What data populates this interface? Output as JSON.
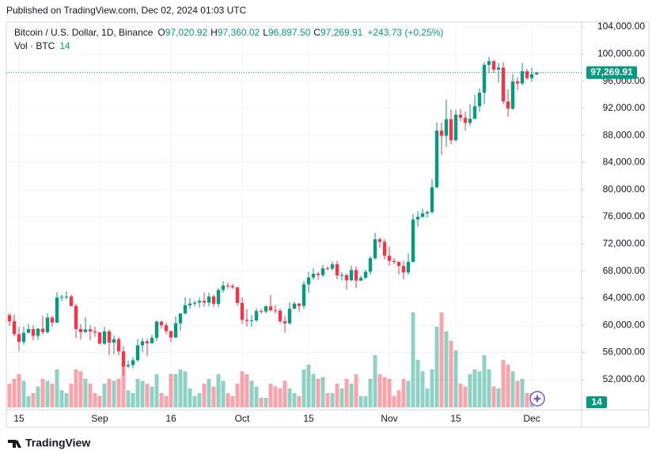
{
  "chart_data": {
    "type": "candlestick",
    "published": "Published on TradingView.com, Dec 02, 2024 01:03 UTC",
    "header": {
      "symbol": "Bitcoin / U.S. Dollar, 1D, Binance",
      "open_prefix": "O",
      "open": "97,020.92",
      "high_prefix": "H",
      "high": "97,360.02",
      "low_prefix": "L",
      "low": "96,897.50",
      "close_prefix": "C",
      "close": "97,269.91",
      "change": "+243.73 (+0.25%)"
    },
    "logo": "TradingView",
    "categories": [
      null,
      null,
      "15",
      null,
      null,
      null,
      null,
      null,
      null,
      null,
      null,
      null,
      null,
      null,
      null,
      null,
      null,
      null,
      null,
      "Sep",
      null,
      null,
      null,
      null,
      null,
      null,
      null,
      null,
      null,
      null,
      null,
      null,
      null,
      null,
      "16",
      null,
      null,
      null,
      null,
      null,
      null,
      null,
      null,
      null,
      null,
      null,
      null,
      null,
      null,
      "Oct",
      null,
      null,
      null,
      null,
      null,
      null,
      null,
      null,
      null,
      null,
      null,
      null,
      null,
      "15",
      null,
      null,
      null,
      null,
      null,
      null,
      null,
      null,
      null,
      null,
      null,
      null,
      null,
      null,
      null,
      null,
      "Nov",
      null,
      null,
      null,
      null,
      null,
      null,
      null,
      null,
      null,
      null,
      null,
      null,
      null,
      "15",
      null,
      null,
      null,
      null,
      null,
      null,
      null,
      null,
      null,
      null,
      null,
      null,
      null,
      null,
      null,
      "Dec",
      null
    ],
    "open": [
      61500,
      60600,
      58700,
      57550,
      58900,
      59450,
      58450,
      59500,
      59000,
      61150,
      60400,
      64100,
      64200,
      64250,
      62850,
      59450,
      59000,
      59400,
      59100,
      58950,
      57300,
      59100,
      57450,
      57950,
      56150,
      53950,
      54150,
      54850,
      57050,
      57650,
      57350,
      58150,
      60550,
      60000,
      59150,
      58200,
      60300,
      61750,
      62950,
      63200,
      63350,
      63600,
      63350,
      64250,
      63150,
      65200,
      65850,
      65800,
      65600,
      63300,
      60800,
      60650,
      60750,
      62100,
      62050,
      62800,
      62200,
      62150,
      60600,
      60300,
      62450,
      63200,
      62850,
      66050,
      67050,
      67600,
      67400,
      68400,
      68350,
      69000,
      67350,
      67400,
      66650,
      68150,
      66600,
      67000,
      67900,
      69900,
      72700,
      72300,
      70250,
      69500,
      69350,
      68750,
      67800,
      69350,
      75600,
      76000,
      76500,
      76700,
      80350,
      88700,
      87950,
      90400,
      87300,
      91050,
      90600,
      89850,
      90450,
      92300,
      94300,
      98400,
      98950,
      97700,
      98000,
      93000,
      91950,
      95950,
      95650,
      97450,
      96450,
      97020.92
    ],
    "high": [
      61800,
      61600,
      59800,
      59800,
      60200,
      60000,
      59600,
      61400,
      61800,
      61400,
      64900,
      64500,
      65000,
      64500,
      63200,
      60200,
      61200,
      60000,
      59800,
      59000,
      59800,
      59400,
      58500,
      58300,
      56900,
      54800,
      55300,
      58000,
      58100,
      58000,
      58600,
      60700,
      60650,
      60400,
      59200,
      61300,
      61800,
      64100,
      64000,
      63600,
      64100,
      64800,
      64800,
      64500,
      65500,
      66500,
      66300,
      66100,
      65600,
      64100,
      62400,
      61500,
      62500,
      62400,
      62950,
      64500,
      63000,
      62500,
      61300,
      63400,
      63500,
      63300,
      66500,
      67900,
      68400,
      67900,
      68900,
      68700,
      69400,
      69500,
      67800,
      67600,
      68800,
      68700,
      67300,
      68200,
      70200,
      73600,
      72900,
      72700,
      71600,
      69900,
      69400,
      69500,
      70600,
      76400,
      76800,
      77200,
      76900,
      81500,
      89900,
      89900,
      93300,
      91800,
      91800,
      91900,
      91500,
      92600,
      94000,
      94900,
      98800,
      99600,
      99100,
      98700,
      98800,
      94800,
      97000,
      96600,
      98700,
      97800,
      98000,
      97360.02
    ],
    "low": [
      59900,
      58400,
      56200,
      57100,
      58800,
      57800,
      57900,
      58600,
      58800,
      59800,
      60300,
      63600,
      63800,
      62800,
      58100,
      57900,
      58900,
      57800,
      58300,
      57200,
      57100,
      55600,
      55700,
      55600,
      52600,
      53700,
      53650,
      54600,
      56000,
      55500,
      57300,
      57700,
      59500,
      58700,
      57500,
      58100,
      59200,
      61600,
      62400,
      62800,
      62600,
      62700,
      62800,
      62700,
      62700,
      64800,
      65400,
      65400,
      62900,
      60200,
      59800,
      59800,
      60500,
      61700,
      61800,
      62100,
      61800,
      60300,
      58900,
      60100,
      62400,
      62000,
      62400,
      64800,
      66700,
      66700,
      67100,
      68100,
      68100,
      66800,
      66600,
      65300,
      66500,
      65500,
      66500,
      66800,
      67500,
      69700,
      71400,
      69700,
      68800,
      69000,
      67500,
      66800,
      67500,
      69300,
      74500,
      75800,
      75900,
      76400,
      80200,
      85100,
      86300,
      86700,
      87100,
      90100,
      88700,
      89400,
      90400,
      91500,
      92600,
      97200,
      97200,
      95800,
      92600,
      90800,
      91800,
      94700,
      95400,
      96200,
      95900,
      96897.5
    ],
    "close": [
      60600,
      58700,
      57550,
      58900,
      59450,
      58450,
      59500,
      59000,
      61150,
      60400,
      64100,
      64200,
      64250,
      62850,
      59450,
      59000,
      59400,
      59100,
      58950,
      57300,
      59100,
      57450,
      57950,
      56150,
      53950,
      54150,
      54850,
      57050,
      57650,
      57350,
      58150,
      60550,
      60000,
      59150,
      58200,
      60300,
      61750,
      62950,
      63200,
      63350,
      63600,
      63350,
      64250,
      63150,
      65200,
      65850,
      65800,
      65600,
      63300,
      60800,
      60650,
      60750,
      62100,
      62050,
      62800,
      62200,
      62150,
      60600,
      60300,
      62450,
      63200,
      62850,
      66050,
      67050,
      67600,
      67400,
      68400,
      68350,
      69000,
      67350,
      67400,
      66650,
      68150,
      66600,
      67000,
      67900,
      69900,
      72700,
      72300,
      70250,
      69500,
      69350,
      68750,
      67800,
      69350,
      75600,
      76000,
      76500,
      76700,
      80350,
      88700,
      87950,
      90400,
      87300,
      91050,
      90600,
      89850,
      90450,
      92300,
      94300,
      98400,
      98950,
      97700,
      98000,
      93000,
      91950,
      95950,
      95650,
      97450,
      96450,
      97026.18,
      97269.91
    ],
    "volume": {
      "name": "Vol · BTC",
      "values": [
        25000,
        30000,
        35000,
        28000,
        12000,
        15000,
        22000,
        30000,
        28000,
        25000,
        40000,
        18000,
        15000,
        25000,
        40000,
        38000,
        30000,
        25000,
        15000,
        12000,
        25000,
        30000,
        28000,
        30000,
        45000,
        18000,
        15000,
        30000,
        28000,
        25000,
        22000,
        35000,
        15000,
        12000,
        35000,
        35000,
        40000,
        38000,
        20000,
        12000,
        15000,
        25000,
        30000,
        22000,
        35000,
        28000,
        15000,
        12000,
        25000,
        38000,
        35000,
        28000,
        22000,
        10000,
        10000,
        25000,
        22000,
        20000,
        28000,
        20000,
        15000,
        12000,
        40000,
        45000,
        35000,
        30000,
        32000,
        15000,
        15000,
        25000,
        20000,
        30000,
        25000,
        35000,
        12000,
        12000,
        30000,
        55000,
        35000,
        32000,
        30000,
        12000,
        18000,
        30000,
        28000,
        100000,
        50000,
        38000,
        20000,
        40000,
        85000,
        100000,
        80000,
        70000,
        60000,
        25000,
        22000,
        35000,
        40000,
        38000,
        55000,
        40000,
        22000,
        20000,
        50000,
        45000,
        38000,
        28000,
        30000,
        15000,
        15000,
        14
      ]
    },
    "up_color": "#089981",
    "down_color": "#f23645",
    "ylim": [
      47900,
      104700
    ],
    "yticks": [
      {
        "value": 52000,
        "label": "52,000.00"
      },
      {
        "value": 56000,
        "label": "56,000.00"
      },
      {
        "value": 60000,
        "label": "60,000.00"
      },
      {
        "value": 64000,
        "label": "64,000.00"
      },
      {
        "value": 68000,
        "label": "68,000.00"
      },
      {
        "value": 72000,
        "label": "72,000.00"
      },
      {
        "value": 76000,
        "label": "76,000.00"
      },
      {
        "value": 80000,
        "label": "80,000.00"
      },
      {
        "value": 84000,
        "label": "84,000.00"
      },
      {
        "value": 88000,
        "label": "88,000.00"
      },
      {
        "value": 92000,
        "label": "92,000.00"
      },
      {
        "value": 96000,
        "label": "96,000.00"
      },
      {
        "value": 100000,
        "label": "100,000.00"
      },
      {
        "value": 104000,
        "label": "104,000.00"
      }
    ],
    "grid": true,
    "last_label": "97,269.91"
  }
}
